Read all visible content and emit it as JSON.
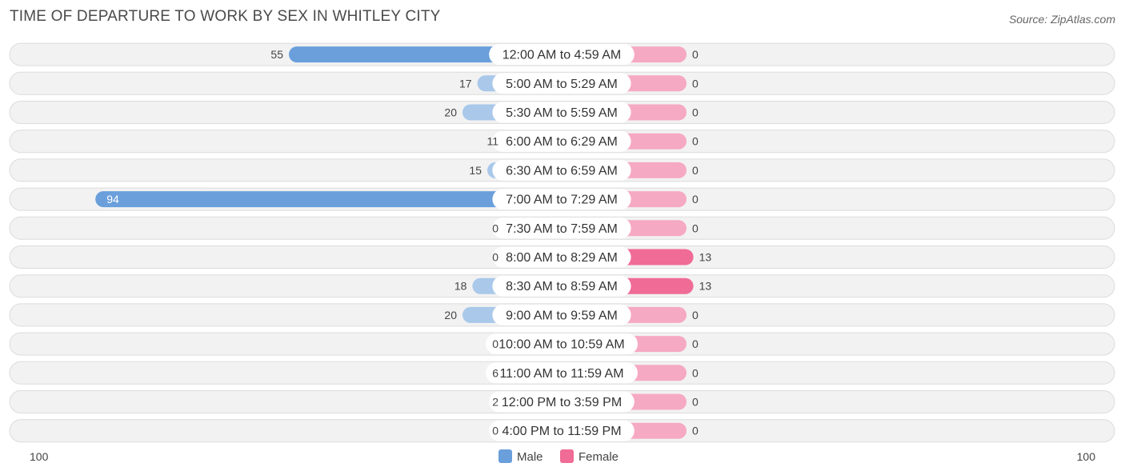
{
  "title": "TIME OF DEPARTURE TO WORK BY SEX IN WHITLEY CITY",
  "source": "Source: ZipAtlas.com",
  "chart_data": {
    "type": "bar",
    "orientation": "horizontal-diverging",
    "categories": [
      "12:00 AM to 4:59 AM",
      "5:00 AM to 5:29 AM",
      "5:30 AM to 5:59 AM",
      "6:00 AM to 6:29 AM",
      "6:30 AM to 6:59 AM",
      "7:00 AM to 7:29 AM",
      "7:30 AM to 7:59 AM",
      "8:00 AM to 8:29 AM",
      "8:30 AM to 8:59 AM",
      "9:00 AM to 9:59 AM",
      "10:00 AM to 10:59 AM",
      "11:00 AM to 11:59 AM",
      "12:00 PM to 3:59 PM",
      "4:00 PM to 11:59 PM"
    ],
    "series": [
      {
        "name": "Male",
        "color": "#6a9fdb",
        "values": [
          55,
          17,
          20,
          11,
          15,
          94,
          0,
          0,
          18,
          20,
          0,
          6,
          2,
          0
        ]
      },
      {
        "name": "Female",
        "color": "#f06b96",
        "values": [
          0,
          0,
          0,
          0,
          0,
          0,
          0,
          13,
          13,
          0,
          0,
          0,
          0,
          0
        ]
      }
    ],
    "axis": {
      "left_label": "100",
      "right_label": "100",
      "max": 100
    },
    "legend_position": "bottom-center"
  }
}
